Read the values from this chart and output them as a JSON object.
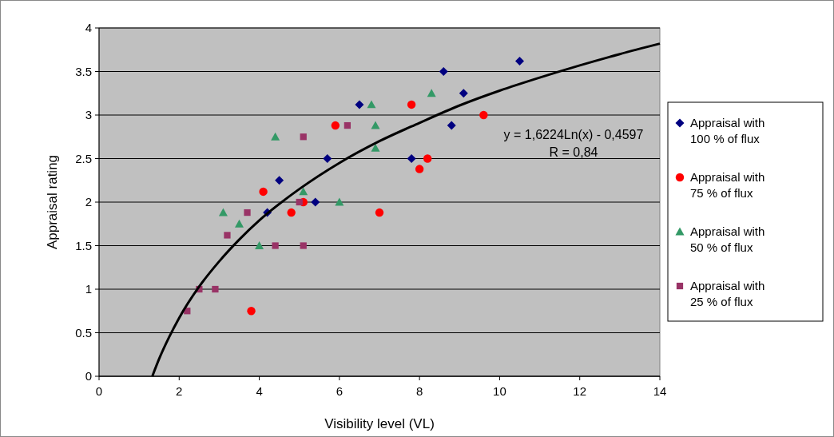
{
  "chart_data": {
    "type": "scatter",
    "xlabel": "Visibility level (VL)",
    "ylabel": "Appraisal rating",
    "xlim": [
      0,
      14
    ],
    "xticks": [
      0,
      2,
      4,
      6,
      8,
      10,
      12,
      14
    ],
    "ylim": [
      0,
      4
    ],
    "yticks": [
      0,
      0.5,
      1,
      1.5,
      2,
      2.5,
      3,
      3.5,
      4
    ],
    "grid": "y",
    "legend": "right",
    "annotations": [
      "y = 1,6224Ln(x) - 0,4597",
      "R = 0,84"
    ],
    "series": [
      {
        "name": "Appraisal with 100 % of flux",
        "color": "#000080",
        "marker": "diamond",
        "x": [
          4.2,
          4.5,
          5.4,
          5.7,
          6.5,
          7.8,
          8.6,
          8.8,
          9.1,
          10.5
        ],
        "values": [
          1.88,
          2.25,
          2,
          2.5,
          3.12,
          2.5,
          3.5,
          2.88,
          3.25,
          3.62
        ]
      },
      {
        "name": "Appraisal with 75 % of flux",
        "color": "#ff0000",
        "marker": "circle",
        "x": [
          3.8,
          4.1,
          4.8,
          5.1,
          5.9,
          7,
          7.8,
          8,
          8.2,
          9.6
        ],
        "values": [
          0.75,
          2.12,
          1.88,
          2,
          2.88,
          1.88,
          3.12,
          2.38,
          2.5,
          3
        ]
      },
      {
        "name": "Appraisal with 50 % of flux",
        "color": "#339966",
        "marker": "triangle",
        "x": [
          3.1,
          3.5,
          4,
          4.4,
          5.1,
          6,
          6.8,
          6.9,
          6.9,
          8.3
        ],
        "values": [
          1.88,
          1.75,
          1.5,
          2.75,
          2.12,
          2,
          3.12,
          2.88,
          2.62,
          3.25
        ]
      },
      {
        "name": "Appraisal with 25 % of flux",
        "color": "#993366",
        "marker": "square",
        "x": [
          2.2,
          2.5,
          2.9,
          3.2,
          3.7,
          4.4,
          5,
          5.1,
          5.1,
          6.2
        ],
        "values": [
          0.75,
          1,
          1,
          1.62,
          1.88,
          1.5,
          2,
          1.5,
          2.75,
          2.88
        ]
      },
      {
        "type": "line",
        "color": "#000000",
        "marker": "none",
        "line_style": "solid",
        "x": [
          1.33,
          1.5,
          1.75,
          2,
          2.5,
          3,
          3.5,
          4,
          5,
          6,
          7,
          8,
          9,
          10,
          11,
          12,
          13,
          14
        ],
        "values": [
          0,
          0.2,
          0.45,
          0.67,
          1.03,
          1.32,
          1.57,
          1.79,
          2.15,
          2.45,
          2.7,
          2.91,
          3.11,
          3.28,
          3.43,
          3.57,
          3.7,
          3.82
        ]
      }
    ]
  }
}
